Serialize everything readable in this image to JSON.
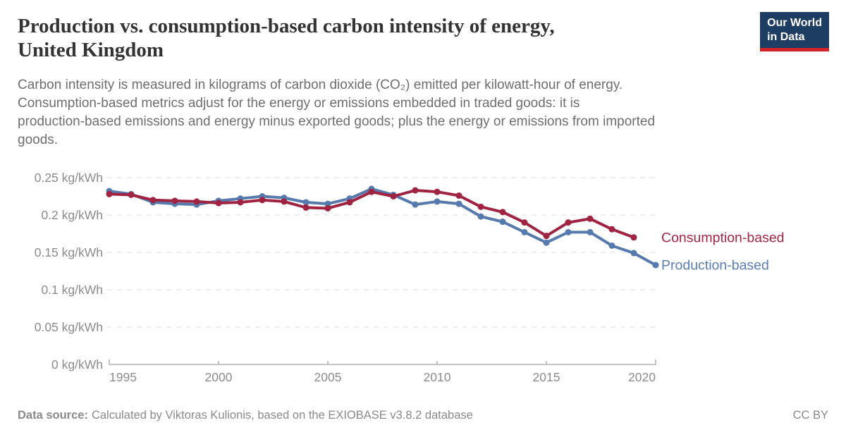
{
  "chart_data": {
    "type": "line",
    "title": "Production vs. consumption-based carbon intensity of energy,\nUnited Kingdom",
    "subtitle": "Carbon intensity is measured in kilograms of carbon dioxide (CO₂) emitted per kilowatt-hour of energy.\nConsumption-based metrics adjust for the energy or emissions embedded in traded goods: it is\nproduction-based emissions and energy minus exported goods; plus the energy or emissions from imported\ngoods.",
    "unit": "kg/kWh",
    "grid": "dashed-horizontal",
    "legend_position": "right-of-line-ends",
    "ylim": [
      0,
      0.25
    ],
    "y_ticks": [
      {
        "value": 0,
        "label": "0 kg/kWh"
      },
      {
        "value": 0.05,
        "label": "0.05 kg/kWh"
      },
      {
        "value": 0.1,
        "label": "0.1 kg/kWh"
      },
      {
        "value": 0.15,
        "label": "0.15 kg/kWh"
      },
      {
        "value": 0.2,
        "label": "0.2 kg/kWh"
      },
      {
        "value": 0.25,
        "label": "0.25 kg/kWh"
      }
    ],
    "x_ticks": [
      1995,
      2000,
      2005,
      2010,
      2015,
      2020
    ],
    "years": [
      1995,
      1996,
      1997,
      1998,
      1999,
      2000,
      2001,
      2002,
      2003,
      2004,
      2005,
      2006,
      2007,
      2008,
      2009,
      2010,
      2011,
      2012,
      2013,
      2014,
      2015,
      2016,
      2017,
      2018,
      2019,
      2020
    ],
    "series": [
      {
        "id": "production-based",
        "name": "Production-based",
        "color": "#567AAD",
        "label_color": "#5B7EB5",
        "values": [
          0.232,
          0.228,
          0.217,
          0.215,
          0.214,
          0.219,
          0.222,
          0.225,
          0.223,
          0.217,
          0.215,
          0.222,
          0.235,
          0.227,
          0.214,
          0.218,
          0.215,
          0.198,
          0.191,
          0.177,
          0.163,
          0.177,
          0.177,
          0.159,
          0.149,
          0.133
        ]
      },
      {
        "id": "consumption-based",
        "name": "Consumption-based",
        "color": "#A02342",
        "label_color": "#A52747",
        "values": [
          0.228,
          0.227,
          0.22,
          0.219,
          0.218,
          0.216,
          0.217,
          0.22,
          0.218,
          0.21,
          0.209,
          0.217,
          0.231,
          0.225,
          0.233,
          0.231,
          0.226,
          0.211,
          0.204,
          0.19,
          0.172,
          0.19,
          0.195,
          0.181,
          0.17,
          null
        ]
      }
    ]
  },
  "logo": {
    "line1": "Our World",
    "line2": "in Data",
    "bg": "#1D3D63",
    "accent": "#D1232A"
  },
  "footer": {
    "source_label": "Data source:",
    "source_text": "Calculated by Viktoras Kulionis, based on the EXIOBASE v3.8.2 database",
    "license": "CC BY"
  }
}
